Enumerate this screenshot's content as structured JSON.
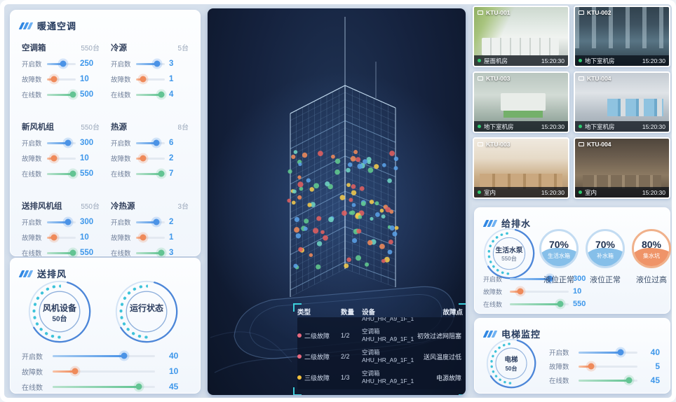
{
  "colors": {
    "accent_blue": "#3e97ea",
    "accent_orange": "#ef8a5a",
    "accent_green": "#63c493",
    "accent_cyan": "#39cfdb",
    "alarm_red": "#e8697f",
    "alarm_yellow": "#f3c03c"
  },
  "hvac_panel": {
    "title": "暖通空调",
    "groups": [
      {
        "name": "空调箱",
        "count": "550台",
        "metrics": [
          {
            "label": "开启数",
            "value": "250",
            "pct": 57
          },
          {
            "label": "故障数",
            "value": "10",
            "pct": 25
          },
          {
            "label": "在线数",
            "value": "500",
            "pct": 90
          }
        ]
      },
      {
        "name": "冷源",
        "count": "5台",
        "metrics": [
          {
            "label": "开启数",
            "value": "3",
            "pct": 73
          },
          {
            "label": "故障数",
            "value": "1",
            "pct": 25
          },
          {
            "label": "在线数",
            "value": "4",
            "pct": 88
          }
        ]
      },
      {
        "name": "新风机组",
        "count": "550台",
        "metrics": [
          {
            "label": "开启数",
            "value": "300",
            "pct": 73
          },
          {
            "label": "故障数",
            "value": "10",
            "pct": 25
          },
          {
            "label": "在线数",
            "value": "550",
            "pct": 90
          }
        ]
      },
      {
        "name": "热源",
        "count": "8台",
        "metrics": [
          {
            "label": "开启数",
            "value": "6",
            "pct": 70
          },
          {
            "label": "故障数",
            "value": "2",
            "pct": 25
          },
          {
            "label": "在线数",
            "value": "7",
            "pct": 88
          }
        ]
      },
      {
        "name": "送排风机组",
        "count": "550台",
        "metrics": [
          {
            "label": "开启数",
            "value": "300",
            "pct": 73
          },
          {
            "label": "故障数",
            "value": "10",
            "pct": 25
          },
          {
            "label": "在线数",
            "value": "550",
            "pct": 90
          }
        ]
      },
      {
        "name": "冷热源",
        "count": "3台",
        "metrics": [
          {
            "label": "开启数",
            "value": "2",
            "pct": 70
          },
          {
            "label": "故障数",
            "value": "1",
            "pct": 25
          },
          {
            "label": "在线数",
            "value": "3",
            "pct": 88
          }
        ]
      }
    ]
  },
  "fan_panel": {
    "title": "送排风",
    "gauges": [
      {
        "label": "风机设备",
        "count": "50台"
      },
      {
        "label": "运行状态",
        "count": ""
      }
    ],
    "metrics": [
      {
        "label": "开启数",
        "value": "40",
        "pct": 70
      },
      {
        "label": "故障数",
        "value": "10",
        "pct": 22
      },
      {
        "label": "在线数",
        "value": "45",
        "pct": 84
      }
    ]
  },
  "fault_table": {
    "headers": [
      "类型",
      "数量",
      "设备",
      "故障点"
    ],
    "clipped_device": "AHU_HR_A9_1F_1",
    "rows": [
      {
        "severity": "二级故障",
        "dot": "#e8697f",
        "qty": "1/2",
        "device": "空调箱",
        "device_id": "AHU_HR_A9_1F_1",
        "fault": "初效过滤网阻塞"
      },
      {
        "severity": "二级故障",
        "dot": "#e8697f",
        "qty": "2/2",
        "device": "空调箱",
        "device_id": "AHU_HR_A9_1F_1",
        "fault": "送风温度过低"
      },
      {
        "severity": "三级故障",
        "dot": "#f3c03c",
        "qty": "1/3",
        "device": "空调箱",
        "device_id": "AHU_HR_A9_1F_1",
        "fault": "电源故障"
      }
    ]
  },
  "cameras": [
    {
      "id": "KTU-001",
      "location": "屋面机房",
      "time": "15:20:30",
      "scene": "rooftop"
    },
    {
      "id": "KTU-002",
      "location": "地下室机房",
      "time": "15:20:30",
      "scene": "pumproom"
    },
    {
      "id": "KTU-003",
      "location": "地下室机房",
      "time": "15:20:30",
      "scene": "plant"
    },
    {
      "id": "KTU-004",
      "location": "地下室机房",
      "time": "15:20:30",
      "scene": "compressor"
    },
    {
      "id": "KTU-003",
      "location": "室内",
      "time": "15:20:30",
      "scene": "office-bright"
    },
    {
      "id": "KTU-004",
      "location": "室内",
      "time": "15:20:30",
      "scene": "office-dark"
    }
  ],
  "water_panel": {
    "title": "给排水",
    "gauge": {
      "label": "生活水泵",
      "count": "550台"
    },
    "metrics": [
      {
        "label": "开启数",
        "value": "300",
        "pct": 68
      },
      {
        "label": "故障数",
        "value": "10",
        "pct": 18
      },
      {
        "label": "在线数",
        "value": "550",
        "pct": 86
      }
    ],
    "tanks": [
      {
        "pct_label": "70%",
        "name": "生活水箱",
        "status": "液位正常",
        "theme": "blue"
      },
      {
        "pct_label": "70%",
        "name": "补水箱",
        "status": "液位正常",
        "theme": "blue"
      },
      {
        "pct_label": "80%",
        "name": "集水坑",
        "status": "液位过高",
        "theme": "orange"
      }
    ]
  },
  "elevator_panel": {
    "title": "电梯监控",
    "gauge": {
      "label": "电梯",
      "count": "50台"
    },
    "metrics": [
      {
        "label": "开启数",
        "value": "40",
        "pct": 72
      },
      {
        "label": "故障数",
        "value": "5",
        "pct": 22
      },
      {
        "label": "在线数",
        "value": "45",
        "pct": 86
      }
    ]
  },
  "building_dots_palette": [
    "#5aa0e6",
    "#62c98e",
    "#6fd4c3",
    "#f2c94c",
    "#ef8a5a",
    "#e06060"
  ]
}
